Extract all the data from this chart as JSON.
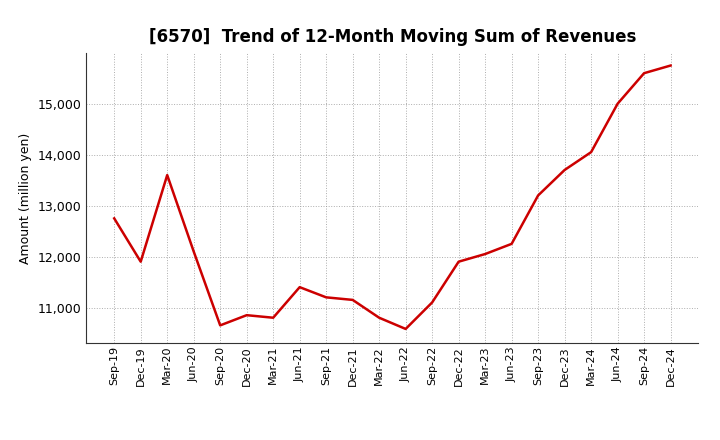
{
  "title": "[6570]  Trend of 12-Month Moving Sum of Revenues",
  "ylabel": "Amount (million yen)",
  "line_color": "#cc0000",
  "background_color": "#ffffff",
  "grid_color": "#999999",
  "title_fontsize": 12,
  "xlabel_fontsize": 8,
  "ylabel_fontsize": 9,
  "xlabels": [
    "Sep-19",
    "Dec-19",
    "Mar-20",
    "Jun-20",
    "Sep-20",
    "Dec-20",
    "Mar-21",
    "Jun-21",
    "Sep-21",
    "Dec-21",
    "Mar-22",
    "Jun-22",
    "Sep-22",
    "Dec-22",
    "Mar-23",
    "Jun-23",
    "Sep-23",
    "Dec-23",
    "Mar-24",
    "Jun-24",
    "Sep-24",
    "Dec-24"
  ],
  "values": [
    12750,
    11900,
    13600,
    12100,
    10650,
    10850,
    10800,
    11400,
    11200,
    11150,
    10800,
    10580,
    11100,
    11900,
    12050,
    12250,
    13200,
    13700,
    14050,
    15000,
    15600,
    15750
  ],
  "ylim": [
    10300,
    16000
  ],
  "yticks": [
    11000,
    12000,
    13000,
    14000,
    15000
  ]
}
